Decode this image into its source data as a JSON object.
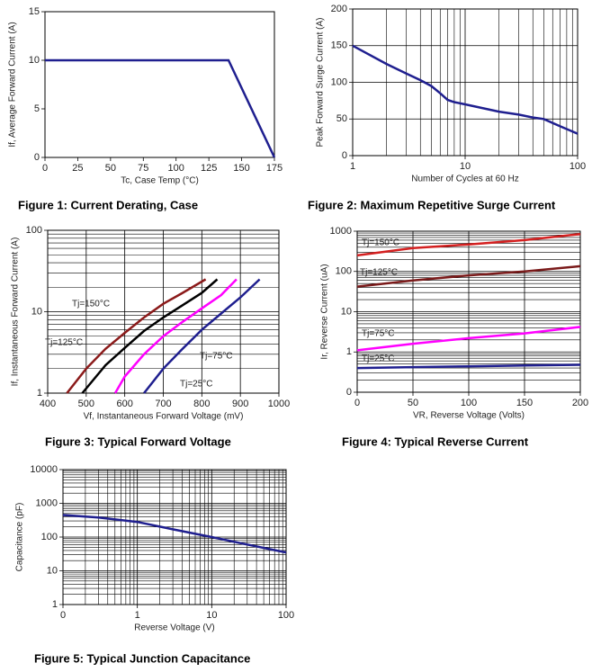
{
  "chart_data": [
    {
      "type": "line",
      "title": "Figure 1: Current Derating, Case",
      "x_label": "Tc, Case Temp (°C)",
      "y_label": "If, Average Forward Current (A)",
      "xscale": "linear",
      "yscale": "linear",
      "grid": false,
      "xlim": [
        0,
        175
      ],
      "xticks": [
        0,
        25,
        50,
        75,
        100,
        125,
        150,
        175
      ],
      "ylim": [
        0,
        15
      ],
      "yticks": [
        0,
        5,
        10,
        15
      ],
      "series": [
        {
          "color": "#1f1f8f",
          "x": [
            0,
            140,
            175
          ],
          "values": [
            10,
            10,
            0
          ]
        }
      ]
    },
    {
      "type": "line",
      "title": "Figure 2: Maximum Repetitive Surge Current",
      "x_label": "Number of Cycles at 60 Hz",
      "y_label": "Peak Forward Surge Current (A)",
      "xscale": "log",
      "yscale": "linear",
      "grid": true,
      "xlim": [
        1,
        100
      ],
      "xticks": [
        1,
        10,
        100
      ],
      "ylim": [
        0,
        200
      ],
      "yticks": [
        0,
        50,
        100,
        150,
        200
      ],
      "series": [
        {
          "color": "#1f1f8f",
          "x": [
            1,
            2,
            3,
            4,
            5,
            6,
            7,
            8,
            10,
            20,
            30,
            40,
            50,
            70,
            100
          ],
          "values": [
            150,
            125,
            112,
            103,
            95,
            85,
            76,
            73,
            70,
            60,
            56,
            52,
            50,
            40,
            30
          ]
        }
      ]
    },
    {
      "type": "line",
      "title": "Figure 3: Typical Forward Voltage",
      "x_label": "Vf, Instantaneous Forward  Voltage (mV)",
      "y_label": "If, Instantaneous Forward Current (A)",
      "xscale": "linear",
      "yscale": "log",
      "grid": true,
      "xlim": [
        400,
        1000
      ],
      "xticks": [
        400,
        500,
        600,
        700,
        800,
        900,
        1000
      ],
      "ylim": [
        1,
        100
      ],
      "yticks": [
        1,
        10,
        100
      ],
      "series": [
        {
          "name": "Tj=150°C",
          "color": "#8b1a1a",
          "x": [
            450,
            500,
            550,
            600,
            650,
            700,
            750,
            810
          ],
          "values": [
            1,
            2,
            3.5,
            5.5,
            8.5,
            12.5,
            17,
            25
          ]
        },
        {
          "name": "Tj=125°C",
          "color": "#000000",
          "x": [
            490,
            550,
            600,
            650,
            700,
            750,
            800,
            840
          ],
          "values": [
            1,
            2.2,
            3.6,
            5.8,
            8.5,
            12,
            17,
            25
          ]
        },
        {
          "name": "Tj=75°C",
          "color": "#ff00ff",
          "x": [
            575,
            600,
            650,
            700,
            750,
            800,
            850,
            890
          ],
          "values": [
            1,
            1.6,
            3,
            5,
            7.5,
            11,
            16,
            25
          ]
        },
        {
          "name": "Tj=25°C",
          "color": "#1f1f8f",
          "x": [
            650,
            700,
            750,
            800,
            850,
            900,
            950
          ],
          "values": [
            1,
            2,
            3.5,
            6,
            9.5,
            15,
            25
          ]
        }
      ]
    },
    {
      "type": "line",
      "title": "Figure 4: Typical Reverse Current",
      "x_label": "VR, Reverse Voltage (Volts)",
      "y_label": "Ir, Reverse Current (uA)",
      "xscale": "linear",
      "yscale": "log",
      "grid": true,
      "xlim": [
        0,
        200
      ],
      "xticks": [
        0,
        50,
        100,
        150,
        200
      ],
      "ylim": [
        0.1,
        1000
      ],
      "yticks": [
        {
          "value": 0.1,
          "label": "0"
        },
        1,
        10,
        100,
        1000
      ],
      "series": [
        {
          "name": "Tj=150°C",
          "color": "#d42020",
          "x": [
            0,
            50,
            100,
            150,
            200
          ],
          "values": [
            250,
            380,
            470,
            600,
            850
          ]
        },
        {
          "name": "Tj=125°C",
          "color": "#7a1a1a",
          "x": [
            0,
            50,
            100,
            150,
            200
          ],
          "values": [
            42,
            60,
            80,
            100,
            135
          ]
        },
        {
          "name": "Tj=75°C",
          "color": "#ff00ff",
          "x": [
            0,
            50,
            100,
            150,
            200
          ],
          "values": [
            1.1,
            1.6,
            2.2,
            2.9,
            4.2
          ]
        },
        {
          "name": "Tj=25°C",
          "color": "#1f1f8f",
          "x": [
            0,
            50,
            100,
            150,
            200
          ],
          "values": [
            0.4,
            0.42,
            0.44,
            0.46,
            0.48
          ]
        }
      ]
    },
    {
      "type": "line",
      "title": "Figure 5: Typical Junction Capacitance",
      "x_label": "Reverse Voltage (V)",
      "y_label": "Capacitance (pF)",
      "xscale": "log",
      "yscale": "log",
      "grid": true,
      "xlim": [
        0.1,
        100
      ],
      "xticks": [
        {
          "value": 0.1,
          "label": "0"
        },
        1,
        10,
        100
      ],
      "ylim": [
        1,
        10000
      ],
      "yticks": [
        1,
        10,
        100,
        1000,
        10000
      ],
      "series": [
        {
          "color": "#1f1f8f",
          "x": [
            0.1,
            0.3,
            1,
            3,
            10,
            30,
            100
          ],
          "values": [
            450,
            380,
            280,
            170,
            100,
            60,
            35
          ]
        }
      ]
    }
  ]
}
